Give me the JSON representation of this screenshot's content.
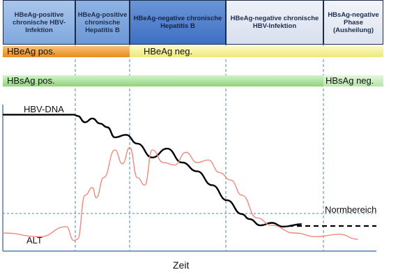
{
  "phases": [
    {
      "label": "HBeAg-positive chronische HBV-Infektion"
    },
    {
      "label": "HBeAg-positive chronische Hepatitis B"
    },
    {
      "label": "HBeAg-negative chronische Hepatitis B"
    },
    {
      "label": "HBeAg-negative chronische HBV-Infektion"
    },
    {
      "label": "HBsAg-negative Phase (Ausheilung)"
    }
  ],
  "hbeag_bar": {
    "pos_label": "HBeAg pos.",
    "neg_label": "HBeAg neg."
  },
  "hbsag_bar": {
    "pos_label": "HBsAg pos.",
    "neg_label": "HBsAg neg."
  },
  "labels": {
    "hbv_dna": "HBV-DNA",
    "alt": "ALT",
    "normbereich": "Normbereich",
    "x_axis": "Zeit"
  },
  "colors": {
    "phase1_fill": "#8fb4e3",
    "phase2_fill": "#7ea7dc",
    "phase3_fill": "#4f7fcf",
    "phase4_fill": "#dfe6f2",
    "phase5_fill": "#e6ebf4",
    "arrow": "#c0504d",
    "hbeag_pos": "#f0a23a",
    "hbeag_neg": "#f4f09a",
    "hbsag": "#a8e09a",
    "hbv_dna_line": "#000000",
    "alt_line": "#f08a7c",
    "grid": "#4f81bd"
  },
  "chart_data": {
    "type": "line",
    "xlabel": "Zeit",
    "ylabel": "",
    "series": [
      {
        "name": "HBV-DNA",
        "x": [
          0,
          0.19,
          0.2,
          0.22,
          0.24,
          0.26,
          0.28,
          0.3,
          0.33,
          0.36,
          0.4,
          0.44,
          0.48,
          0.52,
          0.56,
          0.6,
          0.64,
          0.66,
          0.69,
          0.72,
          0.75,
          0.8
        ],
        "values": [
          6.0,
          6.0,
          5.95,
          5.7,
          5.85,
          5.65,
          5.5,
          5.1,
          5.2,
          4.85,
          4.3,
          4.65,
          4.1,
          3.75,
          3.2,
          2.6,
          2.05,
          1.85,
          1.6,
          1.7,
          1.55,
          1.65
        ]
      },
      {
        "name": "ALT",
        "x": [
          0,
          0.1,
          0.17,
          0.19,
          0.2,
          0.22,
          0.24,
          0.25,
          0.27,
          0.3,
          0.32,
          0.34,
          0.36,
          0.38,
          0.4,
          0.43,
          0.46,
          0.49,
          0.52,
          0.55,
          0.58,
          0.61,
          0.64,
          0.68,
          0.72,
          0.78,
          0.84,
          0.9,
          0.95
        ],
        "values": [
          1.3,
          1.15,
          1.55,
          1.0,
          1.05,
          2.8,
          3.1,
          2.7,
          3.5,
          4.6,
          4.05,
          4.7,
          3.5,
          3.2,
          4.6,
          4.1,
          4.0,
          4.5,
          4.1,
          4.2,
          3.7,
          3.4,
          2.8,
          1.9,
          1.6,
          1.3,
          1.15,
          1.25,
          1.05
        ]
      }
    ]
  }
}
